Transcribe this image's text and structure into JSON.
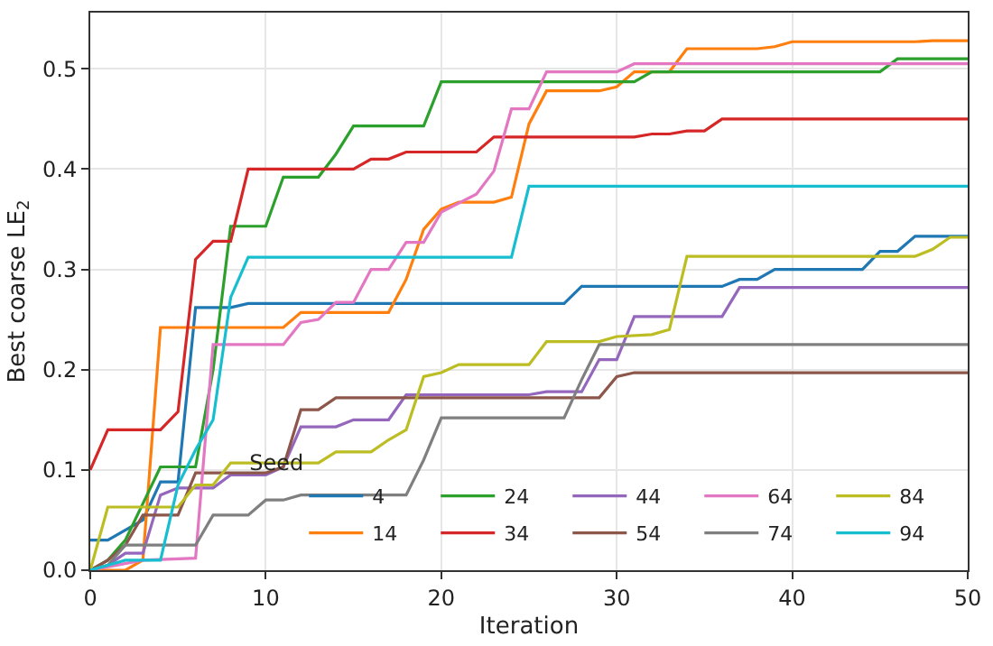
{
  "chart_data": {
    "type": "line",
    "xlabel": "Iteration",
    "ylabel": "Best coarse LE$_{2}$",
    "legend_title": "Seed",
    "legend": "bottom right",
    "grid": true,
    "xlim": [
      0,
      50
    ],
    "xticks": [
      0,
      10,
      20,
      30,
      40,
      50
    ],
    "ylim": [
      0,
      0.556
    ],
    "yticks": [
      {
        "value": 0,
        "label": "0.0"
      },
      {
        "value": 0.1,
        "label": "0.1"
      },
      {
        "value": 0.2,
        "label": "0.2"
      },
      {
        "value": 0.3,
        "label": "0.3"
      },
      {
        "value": 0.4,
        "label": "0.4"
      },
      {
        "value": 0.5,
        "label": "0.5"
      }
    ],
    "series": [
      {
        "name": "4",
        "color": "#1f77b4",
        "x": [
          0,
          1,
          3,
          4,
          5,
          6,
          8,
          9,
          27,
          28,
          36,
          37,
          38,
          39,
          44,
          45,
          46,
          47,
          50
        ],
        "values": [
          0.03,
          0.03,
          0.05,
          0.088,
          0.088,
          0.262,
          0.262,
          0.266,
          0.266,
          0.283,
          0.283,
          0.29,
          0.29,
          0.3,
          0.3,
          0.318,
          0.318,
          0.333,
          0.333
        ]
      },
      {
        "name": "14",
        "color": "#ff7f0e",
        "x": [
          0,
          2,
          3,
          4,
          11,
          12,
          17,
          18,
          19,
          20,
          21,
          23,
          24,
          25,
          26,
          29,
          30,
          31,
          33,
          34,
          38,
          39,
          40,
          47,
          48,
          50
        ],
        "values": [
          0,
          0,
          0.01,
          0.242,
          0.242,
          0.257,
          0.257,
          0.29,
          0.34,
          0.36,
          0.367,
          0.367,
          0.372,
          0.445,
          0.478,
          0.478,
          0.482,
          0.497,
          0.497,
          0.52,
          0.52,
          0.522,
          0.527,
          0.527,
          0.528,
          0.528
        ]
      },
      {
        "name": "24",
        "color": "#2ca02c",
        "x": [
          0,
          1,
          2,
          4,
          6,
          7,
          8,
          10,
          11,
          13,
          14,
          15,
          19,
          20,
          31,
          32,
          45,
          46,
          50
        ],
        "values": [
          0,
          0.01,
          0.03,
          0.103,
          0.103,
          0.2,
          0.343,
          0.343,
          0.392,
          0.392,
          0.415,
          0.443,
          0.443,
          0.487,
          0.487,
          0.497,
          0.497,
          0.51,
          0.51
        ]
      },
      {
        "name": "34",
        "color": "#d62728",
        "x": [
          0,
          1,
          4,
          5,
          6,
          7,
          8,
          9,
          15,
          16,
          17,
          18,
          22,
          23,
          31,
          32,
          33,
          34,
          35,
          36,
          50
        ],
        "values": [
          0.1,
          0.14,
          0.14,
          0.158,
          0.31,
          0.328,
          0.328,
          0.4,
          0.4,
          0.41,
          0.41,
          0.417,
          0.417,
          0.432,
          0.432,
          0.435,
          0.435,
          0.438,
          0.438,
          0.45,
          0.45
        ]
      },
      {
        "name": "44",
        "color": "#9467bd",
        "x": [
          0,
          1,
          2,
          3,
          4,
          5,
          7,
          8,
          10,
          11,
          12,
          14,
          15,
          17,
          18,
          25,
          26,
          28,
          29,
          30,
          31,
          36,
          37,
          50
        ],
        "values": [
          0,
          0.005,
          0.017,
          0.017,
          0.075,
          0.082,
          0.082,
          0.095,
          0.095,
          0.103,
          0.143,
          0.143,
          0.15,
          0.15,
          0.175,
          0.175,
          0.178,
          0.178,
          0.21,
          0.21,
          0.253,
          0.253,
          0.282,
          0.282
        ]
      },
      {
        "name": "54",
        "color": "#8c564b",
        "x": [
          0,
          1,
          2,
          3,
          5,
          6,
          10,
          11,
          12,
          13,
          14,
          29,
          30,
          31,
          50
        ],
        "values": [
          0,
          0.01,
          0.025,
          0.055,
          0.055,
          0.097,
          0.097,
          0.103,
          0.16,
          0.16,
          0.172,
          0.172,
          0.193,
          0.197,
          0.197
        ]
      },
      {
        "name": "64",
        "color": "#e377c2",
        "x": [
          0,
          3,
          6,
          7,
          11,
          12,
          13,
          14,
          15,
          16,
          17,
          18,
          19,
          20,
          22,
          23,
          24,
          25,
          26,
          30,
          31,
          50
        ],
        "values": [
          0,
          0.01,
          0.012,
          0.225,
          0.225,
          0.247,
          0.25,
          0.267,
          0.267,
          0.3,
          0.3,
          0.327,
          0.327,
          0.357,
          0.375,
          0.398,
          0.46,
          0.46,
          0.497,
          0.497,
          0.505,
          0.505
        ]
      },
      {
        "name": "74",
        "color": "#7f7f7f",
        "x": [
          0,
          1,
          2,
          6,
          7,
          9,
          10,
          11,
          12,
          18,
          19,
          20,
          27,
          28,
          29,
          50
        ],
        "values": [
          0,
          0.005,
          0.025,
          0.025,
          0.055,
          0.055,
          0.07,
          0.07,
          0.075,
          0.075,
          0.11,
          0.152,
          0.152,
          0.19,
          0.225,
          0.225
        ]
      },
      {
        "name": "84",
        "color": "#bcbd22",
        "x": [
          0,
          1,
          5,
          6,
          7,
          8,
          13,
          14,
          16,
          17,
          18,
          19,
          20,
          21,
          25,
          26,
          29,
          30,
          32,
          33,
          34,
          47,
          48,
          49,
          50
        ],
        "values": [
          0,
          0.063,
          0.063,
          0.085,
          0.085,
          0.107,
          0.107,
          0.118,
          0.118,
          0.13,
          0.14,
          0.193,
          0.197,
          0.205,
          0.205,
          0.228,
          0.228,
          0.233,
          0.235,
          0.24,
          0.313,
          0.313,
          0.32,
          0.332,
          0.332
        ]
      },
      {
        "name": "94",
        "color": "#17becf",
        "x": [
          0,
          1,
          2,
          4,
          5,
          6,
          7,
          8,
          9,
          24,
          25,
          50
        ],
        "values": [
          0,
          0.005,
          0.01,
          0.01,
          0.085,
          0.12,
          0.15,
          0.272,
          0.312,
          0.312,
          0.383,
          0.383
        ]
      }
    ]
  }
}
